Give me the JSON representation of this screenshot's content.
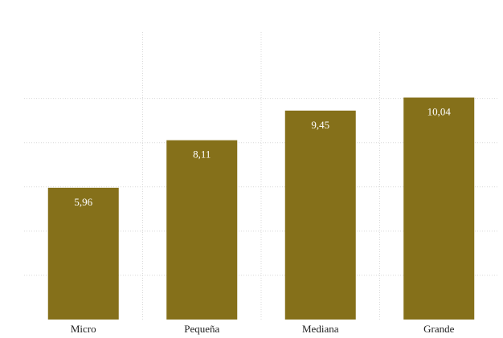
{
  "chart_data": {
    "type": "bar",
    "categories": [
      "Micro",
      "Pequeña",
      "Mediana",
      "Grande"
    ],
    "values": [
      5.96,
      8.11,
      9.45,
      10.04
    ],
    "value_labels": [
      "5,96",
      "8,11",
      "9,45",
      "10,04"
    ],
    "title": "",
    "xlabel": "",
    "ylabel": "",
    "ylim": [
      0,
      13
    ],
    "grid": true,
    "bar_color": "#85701a"
  }
}
